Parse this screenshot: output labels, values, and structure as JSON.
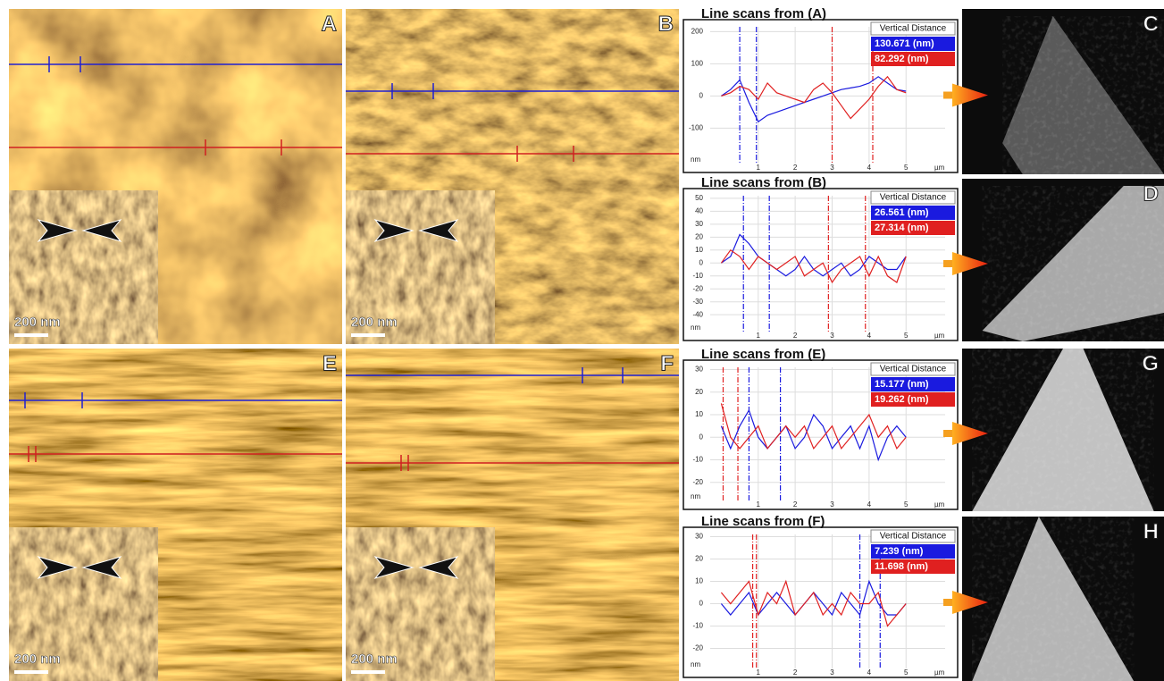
{
  "panels": [
    {
      "label": "A",
      "scale_bar": "200 nm"
    },
    {
      "label": "B",
      "scale_bar": "200 nm"
    },
    {
      "label": "E",
      "scale_bar": "200 nm"
    },
    {
      "label": "F",
      "scale_bar": "200 nm"
    }
  ],
  "sem_panels": [
    {
      "label": "C"
    },
    {
      "label": "D"
    },
    {
      "label": "G"
    },
    {
      "label": "H"
    }
  ],
  "chart_data": [
    {
      "type": "line",
      "title": "Line scans from (A)",
      "legend_title": "Vertical Distance",
      "x_label": "µm",
      "y_label": "nm",
      "x": [
        0,
        0.25,
        0.5,
        0.75,
        1,
        1.25,
        1.5,
        1.75,
        2,
        2.25,
        2.5,
        2.75,
        3,
        3.25,
        3.5,
        3.75,
        4,
        4.25,
        4.5,
        4.75,
        5
      ],
      "xlim": [
        -0.3,
        6.3
      ],
      "xticks": [
        1,
        2,
        3,
        4,
        5
      ],
      "ylim": [
        -210,
        215
      ],
      "yticks": [
        200,
        100,
        0,
        -100
      ],
      "series": [
        {
          "name": "130.671 (nm)",
          "color": "#1a1adf",
          "cursors": [
            0.5,
            0.95
          ],
          "values": [
            0,
            20,
            50,
            -20,
            -80,
            -60,
            -50,
            -40,
            -30,
            -20,
            -10,
            0,
            10,
            20,
            25,
            30,
            40,
            60,
            40,
            20,
            15
          ]
        },
        {
          "name": "82.292 (nm)",
          "color": "#e02020",
          "cursors": [
            3.0,
            4.1
          ],
          "values": [
            0,
            10,
            30,
            20,
            -10,
            40,
            10,
            0,
            -10,
            -20,
            20,
            40,
            10,
            -30,
            -70,
            -40,
            -10,
            30,
            60,
            20,
            10
          ]
        }
      ]
    },
    {
      "type": "line",
      "title": "Line scans from (B)",
      "legend_title": "Vertical Distance",
      "x_label": "µm",
      "y_label": "nm",
      "x": [
        0,
        0.25,
        0.5,
        0.75,
        1,
        1.25,
        1.5,
        1.75,
        2,
        2.25,
        2.5,
        2.75,
        3,
        3.25,
        3.5,
        3.75,
        4,
        4.25,
        4.5,
        4.75,
        5
      ],
      "xlim": [
        -0.3,
        6.3
      ],
      "xticks": [
        1,
        2,
        3,
        4,
        5
      ],
      "ylim": [
        -53,
        52
      ],
      "yticks": [
        50,
        40,
        30,
        20,
        10,
        0,
        -10,
        -20,
        -30,
        -40
      ],
      "series": [
        {
          "name": "26.561 (nm)",
          "color": "#1a1adf",
          "cursors": [
            0.6,
            1.3
          ],
          "values": [
            0,
            5,
            22,
            15,
            5,
            0,
            -5,
            -10,
            -5,
            5,
            -5,
            -10,
            -5,
            0,
            -10,
            -5,
            5,
            0,
            -5,
            -5,
            5
          ]
        },
        {
          "name": "27.314 (nm)",
          "color": "#e02020",
          "cursors": [
            2.9,
            3.9
          ],
          "values": [
            0,
            10,
            5,
            -5,
            5,
            0,
            -5,
            0,
            5,
            -10,
            -5,
            0,
            -15,
            -5,
            0,
            5,
            -10,
            5,
            -10,
            -15,
            5
          ]
        }
      ]
    },
    {
      "type": "line",
      "title": "Line scans from (E)",
      "legend_title": "Vertical Distance",
      "x_label": "µm",
      "y_label": "nm",
      "x": [
        0,
        0.25,
        0.5,
        0.75,
        1,
        1.25,
        1.5,
        1.75,
        2,
        2.25,
        2.5,
        2.75,
        3,
        3.25,
        3.5,
        3.75,
        4,
        4.25,
        4.5,
        4.75,
        5
      ],
      "xlim": [
        -0.3,
        6.3
      ],
      "xticks": [
        1,
        2,
        3,
        4,
        5
      ],
      "ylim": [
        -28,
        31
      ],
      "yticks": [
        30,
        20,
        10,
        0,
        -10,
        -20
      ],
      "series": [
        {
          "name": "15.177 (nm)",
          "color": "#1a1adf",
          "cursors": [
            0.75,
            1.6
          ],
          "values": [
            5,
            -5,
            5,
            12,
            0,
            -5,
            0,
            5,
            -5,
            0,
            10,
            5,
            -5,
            0,
            5,
            -5,
            5,
            -10,
            0,
            5,
            0
          ]
        },
        {
          "name": "19.262 (nm)",
          "color": "#e02020",
          "cursors": [
            0.05,
            0.45
          ],
          "values": [
            15,
            0,
            -5,
            0,
            5,
            -5,
            0,
            5,
            0,
            5,
            -5,
            0,
            5,
            -5,
            0,
            5,
            10,
            0,
            5,
            -5,
            0
          ]
        }
      ]
    },
    {
      "type": "line",
      "title": "Line scans from (F)",
      "legend_title": "Vertical Distance",
      "x_label": "µm",
      "y_label": "nm",
      "x": [
        0,
        0.25,
        0.5,
        0.75,
        1,
        1.25,
        1.5,
        1.75,
        2,
        2.25,
        2.5,
        2.75,
        3,
        3.25,
        3.5,
        3.75,
        4,
        4.25,
        4.5,
        4.75,
        5
      ],
      "xlim": [
        -0.3,
        6.3
      ],
      "xticks": [
        1,
        2,
        3,
        4,
        5
      ],
      "ylim": [
        -29,
        31
      ],
      "yticks": [
        30,
        20,
        10,
        0,
        -10,
        -20
      ],
      "series": [
        {
          "name": "7.239 (nm)",
          "color": "#1a1adf",
          "cursors": [
            3.75,
            4.3
          ],
          "values": [
            0,
            -5,
            0,
            5,
            -5,
            0,
            5,
            0,
            -5,
            0,
            5,
            0,
            -5,
            5,
            0,
            -5,
            10,
            0,
            -5,
            -5,
            0
          ]
        },
        {
          "name": "11.698 (nm)",
          "color": "#e02020",
          "cursors": [
            0.85,
            0.95
          ],
          "values": [
            5,
            0,
            5,
            10,
            -5,
            5,
            0,
            10,
            -5,
            0,
            5,
            -5,
            0,
            -5,
            5,
            0,
            0,
            5,
            -10,
            -5,
            0
          ]
        }
      ]
    }
  ]
}
